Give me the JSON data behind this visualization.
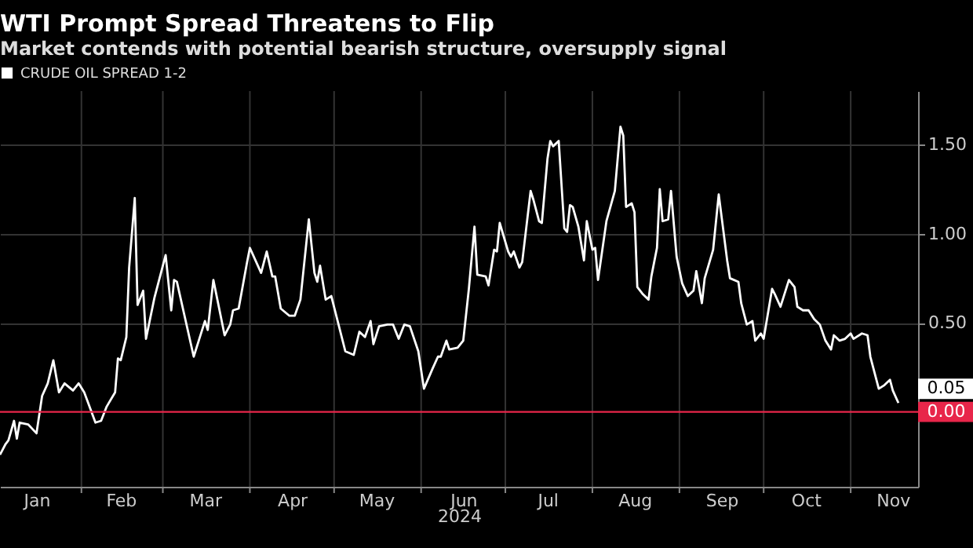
{
  "chart_data": {
    "type": "line",
    "title": "WTI Prompt Spread Threatens to Flip",
    "subtitle": "Market contends with potential bearish structure, oversupply signal",
    "xlabel": "2024",
    "legend": "top left",
    "grid": true,
    "x": [
      "2024-01-03",
      "2024-01-05",
      "2024-01-06",
      "2024-01-08",
      "2024-01-09",
      "2024-01-10",
      "2024-01-13",
      "2024-01-16",
      "2024-01-18",
      "2024-01-20",
      "2024-01-22",
      "2024-01-24",
      "2024-01-26",
      "2024-01-29",
      "2024-01-31",
      "2024-02-02",
      "2024-02-06",
      "2024-02-08",
      "2024-02-10",
      "2024-02-13",
      "2024-02-14",
      "2024-02-15",
      "2024-02-17",
      "2024-02-18",
      "2024-02-20",
      "2024-02-21",
      "2024-02-23",
      "2024-02-24",
      "2024-02-27",
      "2024-03-02",
      "2024-03-04",
      "2024-03-05",
      "2024-03-06",
      "2024-03-12",
      "2024-03-16",
      "2024-03-17",
      "2024-03-19",
      "2024-03-23",
      "2024-03-25",
      "2024-03-26",
      "2024-03-28",
      "2024-03-31",
      "2024-04-01",
      "2024-04-05",
      "2024-04-07",
      "2024-04-09",
      "2024-04-10",
      "2024-04-12",
      "2024-04-15",
      "2024-04-17",
      "2024-04-19",
      "2024-04-22",
      "2024-04-24",
      "2024-04-25",
      "2024-04-26",
      "2024-04-28",
      "2024-04-30",
      "2024-05-05",
      "2024-05-08",
      "2024-05-10",
      "2024-05-12",
      "2024-05-14",
      "2024-05-15",
      "2024-05-17",
      "2024-05-20",
      "2024-05-22",
      "2024-05-24",
      "2024-05-26",
      "2024-05-28",
      "2024-05-31",
      "2024-06-02",
      "2024-06-05",
      "2024-06-07",
      "2024-06-08",
      "2024-06-10",
      "2024-06-11",
      "2024-06-14",
      "2024-06-16",
      "2024-06-18",
      "2024-06-20",
      "2024-06-21",
      "2024-06-24",
      "2024-06-25",
      "2024-06-27",
      "2024-06-28",
      "2024-06-29",
      "2024-07-02",
      "2024-07-03",
      "2024-07-04",
      "2024-07-06",
      "2024-07-07",
      "2024-07-10",
      "2024-07-11",
      "2024-07-13",
      "2024-07-14",
      "2024-07-16",
      "2024-07-17",
      "2024-07-18",
      "2024-07-20",
      "2024-07-22",
      "2024-07-23",
      "2024-07-24",
      "2024-07-25",
      "2024-07-27",
      "2024-07-29",
      "2024-07-30",
      "2024-08-01",
      "2024-08-02",
      "2024-08-03",
      "2024-08-06",
      "2024-08-09",
      "2024-08-11",
      "2024-08-12",
      "2024-08-13",
      "2024-08-15",
      "2024-08-16",
      "2024-08-17",
      "2024-08-19",
      "2024-08-21",
      "2024-08-22",
      "2024-08-24",
      "2024-08-25",
      "2024-08-26",
      "2024-08-28",
      "2024-08-29",
      "2024-08-31",
      "2024-09-02",
      "2024-09-04",
      "2024-09-06",
      "2024-09-07",
      "2024-09-09",
      "2024-09-10",
      "2024-09-13",
      "2024-09-15",
      "2024-09-18",
      "2024-09-19",
      "2024-09-22",
      "2024-09-23",
      "2024-09-25",
      "2024-09-27",
      "2024-09-28",
      "2024-09-30",
      "2024-10-01",
      "2024-10-04",
      "2024-10-05",
      "2024-10-07",
      "2024-10-10",
      "2024-10-12",
      "2024-10-13",
      "2024-10-15",
      "2024-10-17",
      "2024-10-19",
      "2024-10-21",
      "2024-10-23",
      "2024-10-25",
      "2024-10-26",
      "2024-10-28",
      "2024-10-30",
      "2024-11-01",
      "2024-11-02",
      "2024-11-05",
      "2024-11-07",
      "2024-11-08",
      "2024-11-11",
      "2024-11-13",
      "2024-11-15",
      "2024-11-16",
      "2024-11-18"
    ],
    "series": [
      {
        "name": "CRUDE OIL SPREAD 1-2",
        "color": "#ffffff",
        "values": [
          -0.24,
          -0.18,
          -0.16,
          -0.05,
          -0.15,
          -0.06,
          -0.07,
          -0.12,
          0.09,
          0.16,
          0.29,
          0.11,
          0.16,
          0.12,
          0.16,
          0.11,
          -0.06,
          -0.05,
          0.03,
          0.11,
          0.3,
          0.29,
          0.42,
          0.81,
          1.2,
          0.6,
          0.68,
          0.41,
          0.64,
          0.88,
          0.57,
          0.74,
          0.73,
          0.31,
          0.51,
          0.46,
          0.74,
          0.43,
          0.49,
          0.57,
          0.58,
          0.84,
          0.92,
          0.78,
          0.9,
          0.76,
          0.76,
          0.58,
          0.54,
          0.54,
          0.63,
          1.08,
          0.78,
          0.73,
          0.82,
          0.63,
          0.65,
          0.34,
          0.32,
          0.45,
          0.42,
          0.51,
          0.38,
          0.48,
          0.49,
          0.49,
          0.41,
          0.49,
          0.48,
          0.34,
          0.13,
          0.24,
          0.31,
          0.31,
          0.4,
          0.35,
          0.36,
          0.4,
          0.69,
          1.04,
          0.77,
          0.76,
          0.71,
          0.91,
          0.9,
          1.06,
          0.9,
          0.87,
          0.9,
          0.81,
          0.84,
          1.24,
          1.19,
          1.07,
          1.06,
          1.42,
          1.52,
          1.49,
          1.52,
          1.03,
          1.01,
          1.16,
          1.15,
          1.04,
          0.85,
          1.07,
          0.91,
          0.92,
          0.74,
          1.07,
          1.24,
          1.6,
          1.55,
          1.15,
          1.17,
          1.12,
          0.7,
          0.66,
          0.63,
          0.76,
          0.92,
          1.25,
          1.07,
          1.08,
          1.24,
          0.87,
          0.72,
          0.65,
          0.68,
          0.79,
          0.61,
          0.75,
          0.91,
          1.22,
          0.85,
          0.75,
          0.73,
          0.61,
          0.49,
          0.51,
          0.4,
          0.44,
          0.41,
          0.69,
          0.66,
          0.59,
          0.74,
          0.7,
          0.59,
          0.57,
          0.57,
          0.52,
          0.49,
          0.4,
          0.35,
          0.43,
          0.4,
          0.41,
          0.44,
          0.41,
          0.44,
          0.43,
          0.31,
          0.13,
          0.15,
          0.18,
          0.12,
          0.05
        ]
      }
    ],
    "xlim": [
      "2024-01-03",
      "2024-11-25"
    ],
    "xticks": [
      {
        "value": "2024-01-16",
        "label": "Jan"
      },
      {
        "value": "2024-02-01",
        "label": null
      },
      {
        "value": "2024-02-15",
        "label": "Feb"
      },
      {
        "value": "2024-03-01",
        "label": null
      },
      {
        "value": "2024-03-16",
        "label": "Mar"
      },
      {
        "value": "2024-04-01",
        "label": null
      },
      {
        "value": "2024-04-16",
        "label": "Apr"
      },
      {
        "value": "2024-05-01",
        "label": null
      },
      {
        "value": "2024-05-16",
        "label": "May"
      },
      {
        "value": "2024-06-01",
        "label": null
      },
      {
        "value": "2024-06-16",
        "label": "Jun"
      },
      {
        "value": "2024-07-01",
        "label": null
      },
      {
        "value": "2024-07-16",
        "label": "Jul"
      },
      {
        "value": "2024-08-01",
        "label": null
      },
      {
        "value": "2024-08-16",
        "label": "Aug"
      },
      {
        "value": "2024-09-01",
        "label": null
      },
      {
        "value": "2024-09-16",
        "label": "Sep"
      },
      {
        "value": "2024-10-01",
        "label": null
      },
      {
        "value": "2024-10-16",
        "label": "Oct"
      },
      {
        "value": "2024-11-01",
        "label": null
      },
      {
        "value": "2024-11-16",
        "label": "Nov"
      }
    ],
    "ylim": [
      -0.42,
      1.8
    ],
    "yticks": [
      {
        "value": 0.5,
        "label": "0.50"
      },
      {
        "value": 1,
        "label": "1.00"
      },
      {
        "value": 1.5,
        "label": "1.50"
      }
    ],
    "ref_lines": [
      {
        "axis": "y",
        "value": 0,
        "label": "0.00",
        "color": "#e8264a"
      }
    ],
    "annotations": [
      {
        "text": "0.05",
        "x": "2024-11-18",
        "y": 0.05
      }
    ]
  }
}
